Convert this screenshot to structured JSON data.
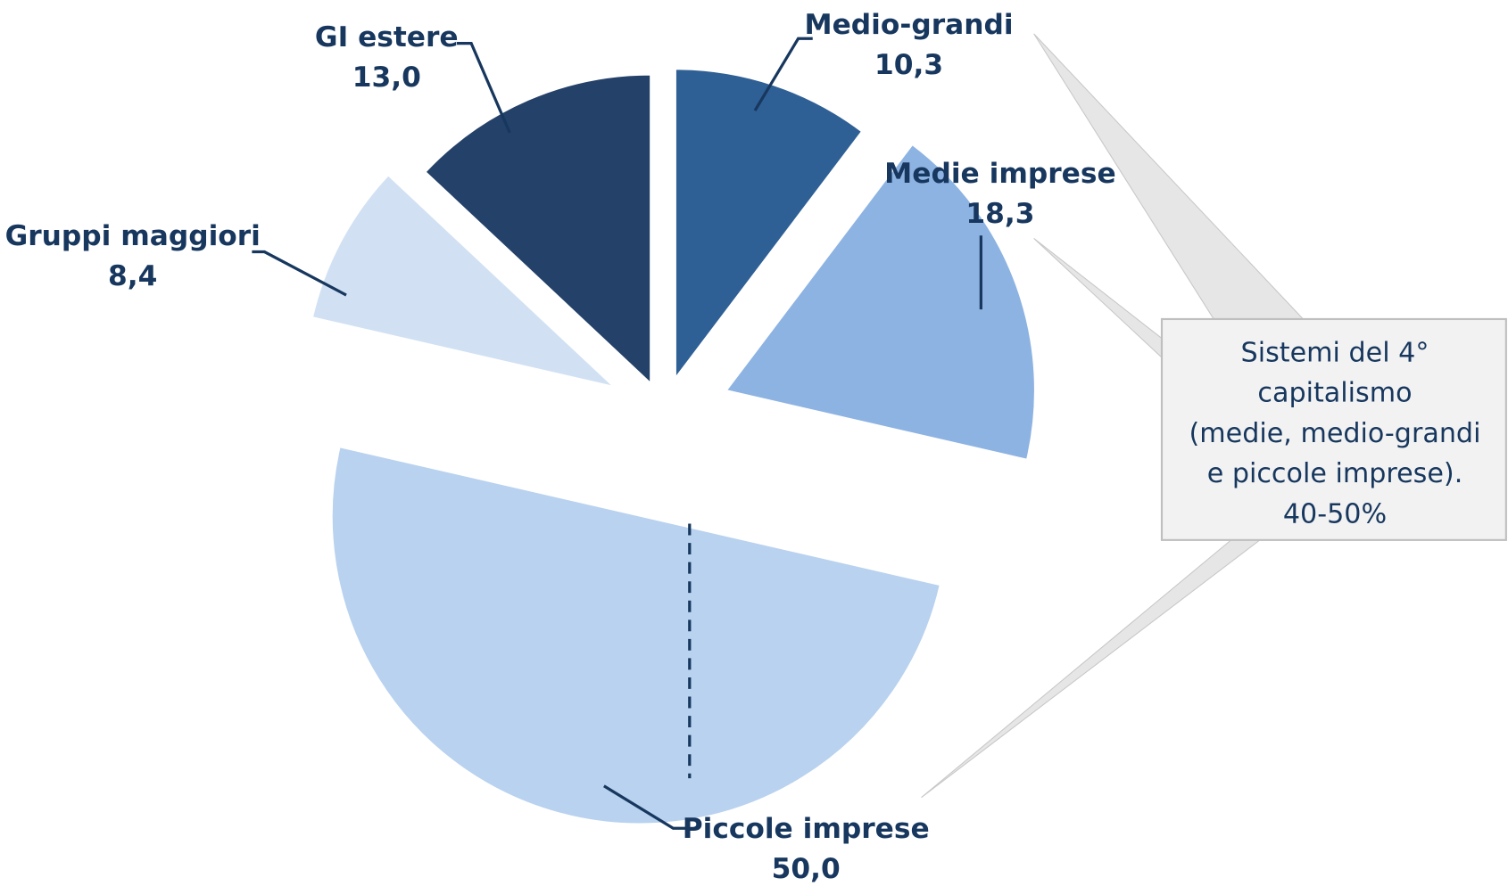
{
  "chart_data": {
    "type": "pie",
    "categories": [
      "Medio-grandi",
      "Medie imprese",
      "Piccole imprese",
      "Gruppi maggiori",
      "GI estere"
    ],
    "values": [
      10.3,
      18.3,
      50.0,
      8.4,
      13.0
    ],
    "value_labels": [
      "10,3",
      "18,3",
      "50,0",
      "8,4",
      "13,0"
    ],
    "colors": [
      "#2e5f95",
      "#8db3e2",
      "#b8d2ef",
      "#d1e1f3",
      "#244169"
    ],
    "annotation": [
      "Sistemi del 4°",
      "capitalismo",
      "(medie, medio-grandi",
      "e piccole imprese).",
      "40-50%"
    ]
  }
}
